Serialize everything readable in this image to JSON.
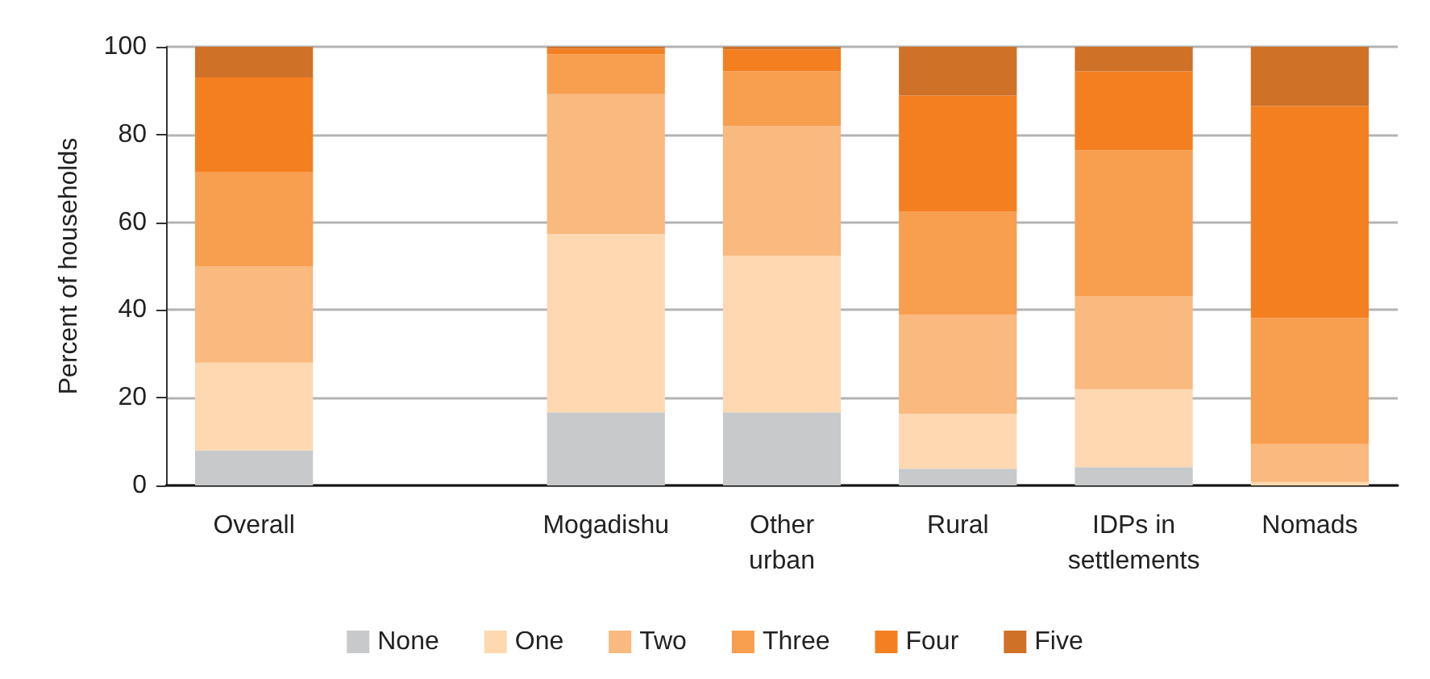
{
  "chart_data": {
    "type": "bar",
    "stacked": true,
    "ylabel": "Percent of households",
    "categories": [
      "Overall",
      null,
      "Mogadishu",
      "Other\nurban",
      "Rural",
      "IDPs in\nsettlements",
      "Nomads"
    ],
    "series": [
      {
        "name": "None",
        "color": "#c8c9cb",
        "values": [
          8,
          null,
          16.7,
          16.7,
          3.8,
          4.2,
          null
        ]
      },
      {
        "name": "One",
        "color": "#fdd8b0",
        "values": [
          20,
          null,
          40.6,
          35.7,
          12.5,
          17.7,
          0.8
        ]
      },
      {
        "name": "Two",
        "color": "#f9b97f",
        "values": [
          22,
          null,
          31.9,
          29.5,
          22.6,
          21.2,
          8.6
        ]
      },
      {
        "name": "Three",
        "color": "#f89e4f",
        "values": [
          21.5,
          null,
          9.1,
          12.5,
          23.6,
          33.3,
          28.8
        ]
      },
      {
        "name": "Four",
        "color": "#f47f21",
        "values": [
          21.5,
          null,
          1.3,
          5,
          26.4,
          18,
          48.3
        ]
      },
      {
        "name": "Five",
        "color": "#d07128",
        "values": [
          7,
          null,
          0.4,
          0.6,
          11.1,
          5.6,
          13.5
        ]
      }
    ],
    "ylim": [
      0,
      100
    ],
    "yticks": [
      0,
      20,
      40,
      60,
      80,
      100
    ],
    "grid": "y",
    "legend": "bottom"
  }
}
